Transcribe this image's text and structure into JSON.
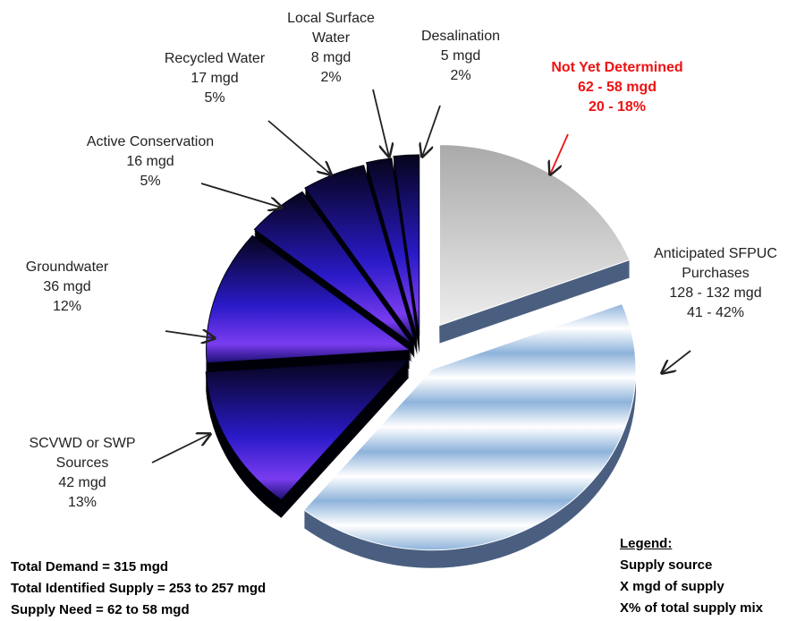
{
  "chart_data": {
    "type": "pie",
    "slices": [
      {
        "name": "Not Yet Determined",
        "supply": "62 - 58 mgd",
        "share": "20 - 18%",
        "value": 19,
        "color": "#c4c4c4",
        "label_color": "#ee1111"
      },
      {
        "name": "Anticipated SFPUC Purchases",
        "supply": "128 - 132 mgd",
        "share": "41 - 42%",
        "value": 41.5,
        "color": "#8eb3db",
        "label_color": "#222222"
      },
      {
        "name": "SCVWD or SWP Sources",
        "supply": "42 mgd",
        "share": "13%",
        "value": 13,
        "color": "#2a1ac8",
        "label_color": "#222222"
      },
      {
        "name": "Groundwater",
        "supply": "36 mgd",
        "share": "12%",
        "value": 12,
        "color": "#2a1ac8",
        "label_color": "#222222"
      },
      {
        "name": "Active Conservation",
        "supply": "16 mgd",
        "share": "5%",
        "value": 5,
        "color": "#2a1ac8",
        "label_color": "#222222"
      },
      {
        "name": "Recycled Water",
        "supply": "17 mgd",
        "share": "5%",
        "value": 5,
        "color": "#2a1ac8",
        "label_color": "#222222"
      },
      {
        "name": "Local Surface Water",
        "supply": "8 mgd",
        "share": "2%",
        "value": 2,
        "color": "#2a1ac8",
        "label_color": "#222222"
      },
      {
        "name": "Desalination",
        "supply": "5 mgd",
        "share": "2%",
        "value": 2,
        "color": "#2a1ac8",
        "label_color": "#222222"
      }
    ],
    "notes": [
      "Total Demand = 315 mgd",
      "Total Identified Supply = 253 to 257 mgd",
      "Supply Need = 62 to 58 mgd"
    ],
    "legend": {
      "title": "Legend:",
      "lines": [
        "Supply source",
        "X mgd of supply",
        "X% of total supply mix"
      ]
    }
  }
}
